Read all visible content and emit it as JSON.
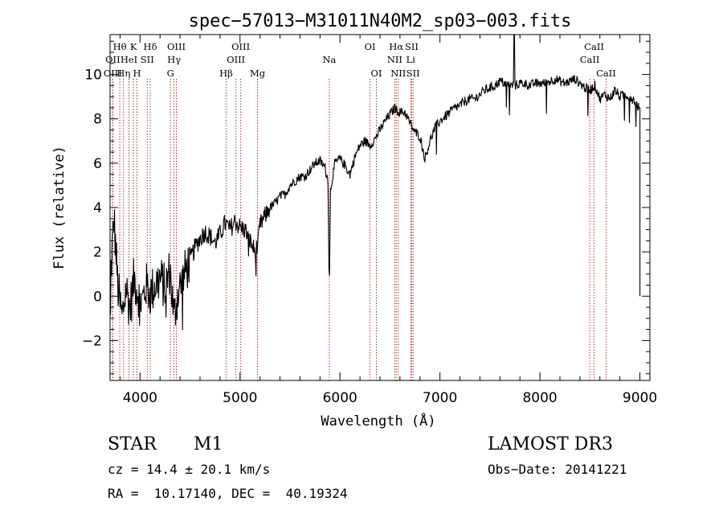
{
  "chart_data": {
    "type": "line",
    "title": "spec−57013−M31011N40M2_sp03−003.fits",
    "xlabel": "Wavelength (Å)",
    "ylabel": "Flux (relative)",
    "xlim": [
      3700,
      9100
    ],
    "ylim": [
      -3.8,
      11.8
    ],
    "xticks": [
      4000,
      5000,
      6000,
      7000,
      8000,
      9000
    ],
    "yticks": [
      -2,
      0,
      2,
      4,
      6,
      8,
      10
    ],
    "ytick_labels": [
      "−2",
      "0",
      "2",
      "4",
      "6",
      "8",
      "10"
    ],
    "minor_x_step": 200,
    "minor_y_step": 0.5,
    "series": [
      {
        "name": "flux",
        "x": [
          3700,
          3740,
          3780,
          3820,
          3860,
          3900,
          3940,
          3980,
          4020,
          4060,
          4100,
          4150,
          4200,
          4250,
          4300,
          4340,
          4380,
          4420,
          4460,
          4500,
          4550,
          4600,
          4650,
          4700,
          4750,
          4800,
          4850,
          4900,
          4950,
          5000,
          5050,
          5100,
          5150,
          5180,
          5200,
          5250,
          5300,
          5350,
          5400,
          5450,
          5500,
          5550,
          5600,
          5650,
          5700,
          5750,
          5800,
          5850,
          5880,
          5893,
          5905,
          5930,
          5950,
          6000,
          6050,
          6100,
          6150,
          6200,
          6250,
          6300,
          6350,
          6400,
          6450,
          6500,
          6550,
          6563,
          6600,
          6650,
          6700,
          6750,
          6800,
          6850,
          6900,
          6950,
          7000,
          7050,
          7100,
          7150,
          7200,
          7250,
          7300,
          7350,
          7400,
          7450,
          7500,
          7550,
          7600,
          7650,
          7700,
          7750,
          7800,
          7850,
          7900,
          7950,
          8000,
          8050,
          8100,
          8150,
          8200,
          8250,
          8300,
          8350,
          8400,
          8450,
          8500,
          8550,
          8600,
          8650,
          8700,
          8750,
          8800,
          8850,
          8900,
          8950,
          9000
        ],
        "y": [
          0.5,
          3.5,
          0.3,
          -1.0,
          0.4,
          -0.6,
          0.8,
          0.2,
          -0.3,
          0.5,
          0.1,
          0.5,
          0.8,
          0.4,
          1.2,
          -1.0,
          0.2,
          0.6,
          1.2,
          1.6,
          2.2,
          2.6,
          2.9,
          2.7,
          2.4,
          2.8,
          3.3,
          3.0,
          3.4,
          3.1,
          3.0,
          2.5,
          2.0,
          2.3,
          3.2,
          3.6,
          4.0,
          4.2,
          4.5,
          4.6,
          5.0,
          5.2,
          5.4,
          5.4,
          5.7,
          6.0,
          6.1,
          5.8,
          5.2,
          0.2,
          4.8,
          5.5,
          6.0,
          6.2,
          5.9,
          5.5,
          6.3,
          6.8,
          7.0,
          6.8,
          7.1,
          7.5,
          7.9,
          8.2,
          8.5,
          8.4,
          8.3,
          8.3,
          7.8,
          7.4,
          7.2,
          6.2,
          7.0,
          7.6,
          7.9,
          8.1,
          8.3,
          8.5,
          8.6,
          8.8,
          8.9,
          8.9,
          9.1,
          9.3,
          9.4,
          9.5,
          9.7,
          9.6,
          9.5,
          9.5,
          9.6,
          9.6,
          9.5,
          9.6,
          9.6,
          9.6,
          9.7,
          9.8,
          9.7,
          9.6,
          9.7,
          9.8,
          9.6,
          9.4,
          9.3,
          9.5,
          8.9,
          9.1,
          8.9,
          9.3,
          9.0,
          9.1,
          9.0,
          8.8,
          8.4
        ]
      }
    ],
    "spectral_lines": [
      {
        "label": "Hθ",
        "x": 3797,
        "row": 1
      },
      {
        "label": "OII",
        "x": 3727,
        "row": 2
      },
      {
        "label": "OIII",
        "x": 3727,
        "row": 3
      },
      {
        "label": "Hη",
        "x": 3835,
        "row": 3
      },
      {
        "label": "HeI",
        "x": 3889,
        "row": 2
      },
      {
        "label": "K",
        "x": 3934,
        "row": 1
      },
      {
        "label": "H",
        "x": 3969,
        "row": 3
      },
      {
        "label": "SII",
        "x": 4072,
        "row": 2
      },
      {
        "label": "Hδ",
        "x": 4102,
        "row": 1
      },
      {
        "label": "G",
        "x": 4304,
        "row": 3
      },
      {
        "label": "OIII",
        "x": 4363,
        "row": 1
      },
      {
        "label": "Hγ",
        "x": 4340,
        "row": 2
      },
      {
        "label": "Hβ",
        "x": 4861,
        "row": 3
      },
      {
        "label": "OIII",
        "x": 5007,
        "row": 1
      },
      {
        "label": "OIII",
        "x": 4959,
        "row": 2
      },
      {
        "label": "Mg",
        "x": 5175,
        "row": 3
      },
      {
        "label": "Na",
        "x": 5893,
        "row": 2
      },
      {
        "label": "OI",
        "x": 6300,
        "row": 1
      },
      {
        "label": "OI",
        "x": 6364,
        "row": 3
      },
      {
        "label": "Hα",
        "x": 6563,
        "row": 1
      },
      {
        "label": "NII",
        "x": 6548,
        "row": 2
      },
      {
        "label": "NII",
        "x": 6583,
        "row": 3
      },
      {
        "label": "SII",
        "x": 6717,
        "row": 1
      },
      {
        "label": "Li",
        "x": 6708,
        "row": 2
      },
      {
        "label": "SII",
        "x": 6731,
        "row": 3
      },
      {
        "label": "CaII",
        "x": 8498,
        "row": 2
      },
      {
        "label": "CaII",
        "x": 8542,
        "row": 1
      },
      {
        "label": "CaII",
        "x": 8662,
        "row": 3
      }
    ]
  },
  "info": {
    "object_type": "STAR",
    "subclass": "M1",
    "survey": "LAMOST DR3",
    "cz": "cz = 14.4 ± 20.1 km/s",
    "obs_date": "Obs−Date: 20141221",
    "coords": "RA =  10.17140, DEC =  40.19324"
  }
}
